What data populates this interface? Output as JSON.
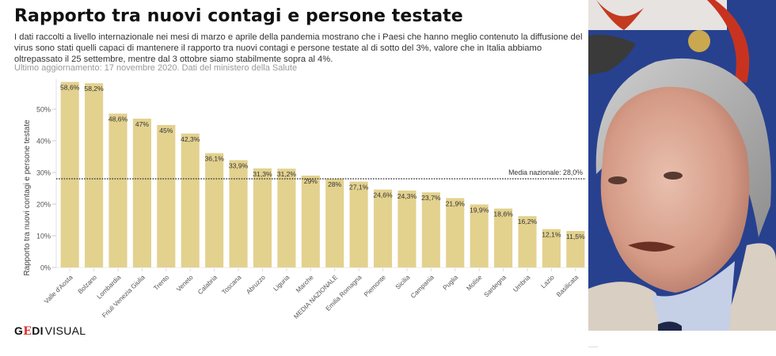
{
  "header": {
    "title": "Rapporto tra nuovi contagi e persone testate",
    "subtitle": "I dati raccolti a livello internazionale nei mesi di marzo e aprile della pandemia mostrano che i Paesi che hanno meglio contenuto la diffusione del virus sono stati quelli capaci di mantenere il rapporto tra nuovi contagi e persone testate al di sotto del 3%, valore che in Italia abbiamo oltrepassato il 25 settembre, mentre dal 3 ottobre siamo stabilmente sopra al 4%.",
    "updated": "Ultimo aggiornamento: 17 novembre 2020. Dati del ministero della Salute"
  },
  "footer": {
    "logo_ge": "G",
    "logo_e": "E",
    "logo_di": "DI",
    "logo_visual": "VISUAL"
  },
  "photo": {
    "description": "Portrait photo of a grey-haired man in a beige jacket speaking, in front of a blue and red coat-of-arms banner"
  },
  "colors": {
    "bar": "#e3d18e",
    "reference_line": "#444444",
    "axis_text": "#555555",
    "title": "#111111",
    "logo_accent": "#d5332f"
  },
  "chart_data": {
    "type": "bar",
    "title": "Rapporto tra nuovi contagi e persone testate",
    "xlabel": "",
    "ylabel": "Rapporto tra nuovi contagi e persone testate",
    "ylim": [
      0,
      60
    ],
    "yticks": [
      0,
      10,
      20,
      30,
      40,
      50
    ],
    "ytick_labels": [
      "0%",
      "10%",
      "20%",
      "30%",
      "40%",
      "50%"
    ],
    "grid": false,
    "categories": [
      "Valle d'Aosta",
      "Bolzano",
      "Lombardia",
      "Friuli Venezia Giulia",
      "Trento",
      "Veneto",
      "Calabria",
      "Toscana",
      "Abruzzo",
      "Liguria",
      "Marche",
      "MEDIA NAZIONALE",
      "Emilia Romagna",
      "Piemonte",
      "Sicilia",
      "Campania",
      "Puglia",
      "Molise",
      "Sardegna",
      "Umbria",
      "Lazio",
      "Basilicata"
    ],
    "values": [
      58.6,
      58.2,
      48.6,
      47,
      45,
      42.3,
      36.1,
      33.9,
      31.3,
      31.2,
      29,
      28,
      27.1,
      24.6,
      24.3,
      23.7,
      21.9,
      19.9,
      18.6,
      16.2,
      12.1,
      11.5
    ],
    "data_labels": [
      "58,6%",
      "58,2%",
      "48,6%",
      "47%",
      "45%",
      "42,3%",
      "36,1%",
      "33,9%",
      "31,3%",
      "31,2%",
      "29%",
      "28%",
      "27,1%",
      "24,6%",
      "24,3%",
      "23,7%",
      "21,9%",
      "19,9%",
      "18,6%",
      "16,2%",
      "12,1%",
      "11,5%"
    ],
    "reference_line": {
      "value": 28.0,
      "label": "Media nazionale: 28,0%",
      "style": "dotted",
      "label_position": "top-right"
    }
  }
}
